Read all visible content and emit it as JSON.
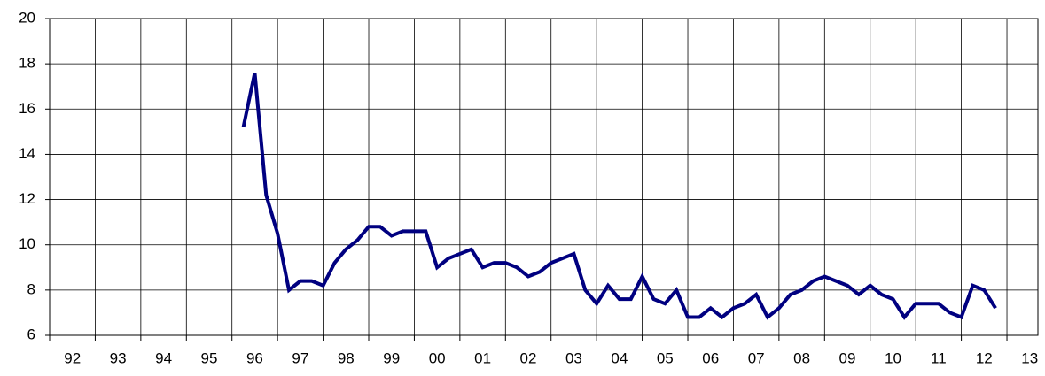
{
  "chart_data": {
    "type": "line",
    "x": [
      1996.25,
      1996.5,
      1996.75,
      1997,
      1997.25,
      1997.5,
      1997.75,
      1998,
      1998.25,
      1998.5,
      1998.75,
      1999,
      1999.25,
      1999.5,
      1999.75,
      2000,
      2000.25,
      2000.5,
      2000.75,
      2001,
      2001.25,
      2001.5,
      2001.75,
      2002,
      2002.25,
      2002.5,
      2002.75,
      2003,
      2003.25,
      2003.5,
      2003.75,
      2004,
      2004.25,
      2004.5,
      2004.75,
      2005,
      2005.25,
      2005.5,
      2005.75,
      2006,
      2006.25,
      2006.5,
      2006.75,
      2007,
      2007.25,
      2007.5,
      2007.75,
      2008,
      2008.25,
      2008.5,
      2008.75,
      2009,
      2009.25,
      2009.5,
      2009.75,
      2010,
      2010.25,
      2010.5,
      2010.75,
      2011,
      2011.25,
      2011.5,
      2011.75,
      2012,
      2012.25,
      2012.5,
      2012.75
    ],
    "values": [
      15.2,
      17.6,
      12.2,
      10.5,
      8.0,
      8.4,
      8.4,
      8.2,
      9.2,
      9.8,
      10.2,
      10.8,
      10.8,
      10.4,
      10.6,
      10.6,
      10.6,
      9.0,
      9.4,
      9.6,
      9.8,
      9.0,
      9.2,
      9.2,
      9.0,
      8.6,
      8.8,
      9.2,
      9.4,
      9.6,
      8.0,
      7.4,
      8.2,
      7.6,
      7.6,
      8.6,
      7.6,
      7.4,
      8.0,
      6.8,
      6.8,
      7.2,
      6.8,
      7.2,
      7.4,
      7.8,
      6.8,
      7.2,
      7.8,
      8.0,
      8.4,
      8.6,
      8.4,
      8.2,
      7.8,
      8.2,
      7.8,
      7.6,
      6.8,
      7.4,
      7.4,
      7.4,
      7.0,
      6.8,
      8.2,
      8.0,
      7.2
    ],
    "color": "#000080",
    "xlim": [
      1992,
      2013.68
    ],
    "xticks": [
      {
        "value": 1992,
        "label": "92"
      },
      {
        "value": 1993,
        "label": "93"
      },
      {
        "value": 1994,
        "label": "94"
      },
      {
        "value": 1995,
        "label": "95"
      },
      {
        "value": 1996,
        "label": "96"
      },
      {
        "value": 1997,
        "label": "97"
      },
      {
        "value": 1998,
        "label": "98"
      },
      {
        "value": 1999,
        "label": "99"
      },
      {
        "value": 2000,
        "label": "00"
      },
      {
        "value": 2001,
        "label": "01"
      },
      {
        "value": 2002,
        "label": "02"
      },
      {
        "value": 2003,
        "label": "03"
      },
      {
        "value": 2004,
        "label": "04"
      },
      {
        "value": 2005,
        "label": "05"
      },
      {
        "value": 2006,
        "label": "06"
      },
      {
        "value": 2007,
        "label": "07"
      },
      {
        "value": 2008,
        "label": "08"
      },
      {
        "value": 2009,
        "label": "09"
      },
      {
        "value": 2010,
        "label": "10"
      },
      {
        "value": 2011,
        "label": "11"
      },
      {
        "value": 2012,
        "label": "12"
      },
      {
        "value": 2013,
        "label": "13"
      }
    ],
    "ylim": [
      6,
      20
    ],
    "yticks": [
      6,
      8,
      10,
      12,
      14,
      16,
      18,
      20
    ],
    "grid": true
  }
}
